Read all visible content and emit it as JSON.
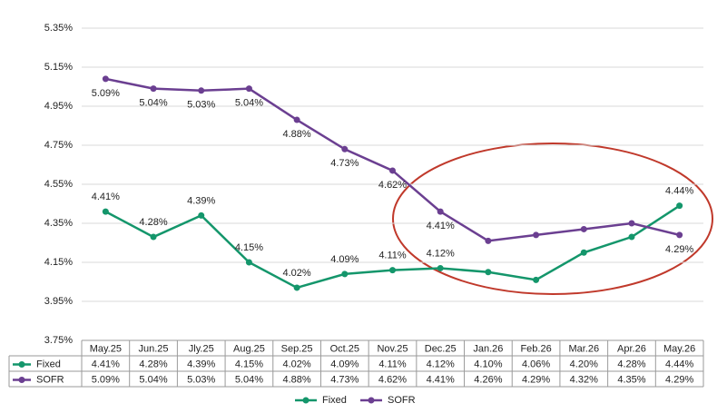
{
  "chart_data": {
    "type": "line",
    "categories": [
      "May.25",
      "Jun.25",
      "Jly.25",
      "Aug.25",
      "Sep.25",
      "Oct.25",
      "Nov.25",
      "Dec.25",
      "Jan.26",
      "Feb.26",
      "Mar.26",
      "Apr.26",
      "May.26"
    ],
    "series": [
      {
        "name": "Fixed",
        "color": "#14966b",
        "values": [
          4.41,
          4.28,
          4.39,
          4.15,
          4.02,
          4.09,
          4.11,
          4.12,
          4.1,
          4.06,
          4.2,
          4.28,
          4.44
        ],
        "value_labels": [
          "4.41%",
          "4.28%",
          "4.39%",
          "4.15%",
          "4.02%",
          "4.09%",
          "4.11%",
          "4.12%",
          "4.10%",
          "4.06%",
          "4.20%",
          "4.28%",
          "4.44%"
        ],
        "data_label_position": "above",
        "data_labels": [
          0,
          1,
          2,
          3,
          4,
          5,
          6,
          7,
          12
        ]
      },
      {
        "name": "SOFR",
        "color": "#6b3f91",
        "values": [
          5.09,
          5.04,
          5.03,
          5.04,
          4.88,
          4.73,
          4.62,
          4.41,
          4.26,
          4.29,
          4.32,
          4.35,
          4.29
        ],
        "value_labels": [
          "5.09%",
          "5.04%",
          "5.03%",
          "5.04%",
          "4.88%",
          "4.73%",
          "4.62%",
          "4.41%",
          "4.26%",
          "4.29%",
          "4.32%",
          "4.35%",
          "4.29%"
        ],
        "data_label_position": "below",
        "data_labels": [
          0,
          1,
          2,
          3,
          4,
          5,
          6,
          7,
          12
        ]
      }
    ],
    "ylim": [
      3.75,
      5.35
    ],
    "yticks": [
      {
        "value": 3.75,
        "label": "3.75%"
      },
      {
        "value": 3.95,
        "label": "3.95%"
      },
      {
        "value": 4.15,
        "label": "4.15%"
      },
      {
        "value": 4.35,
        "label": "4.35%"
      },
      {
        "value": 4.55,
        "label": "4.55%"
      },
      {
        "value": 4.75,
        "label": "4.75%"
      },
      {
        "value": 4.95,
        "label": "4.95%"
      },
      {
        "value": 5.15,
        "label": "5.15%"
      },
      {
        "value": 5.35,
        "label": "5.35%"
      }
    ],
    "grid": true,
    "data_table": true,
    "legend": "bottom"
  }
}
